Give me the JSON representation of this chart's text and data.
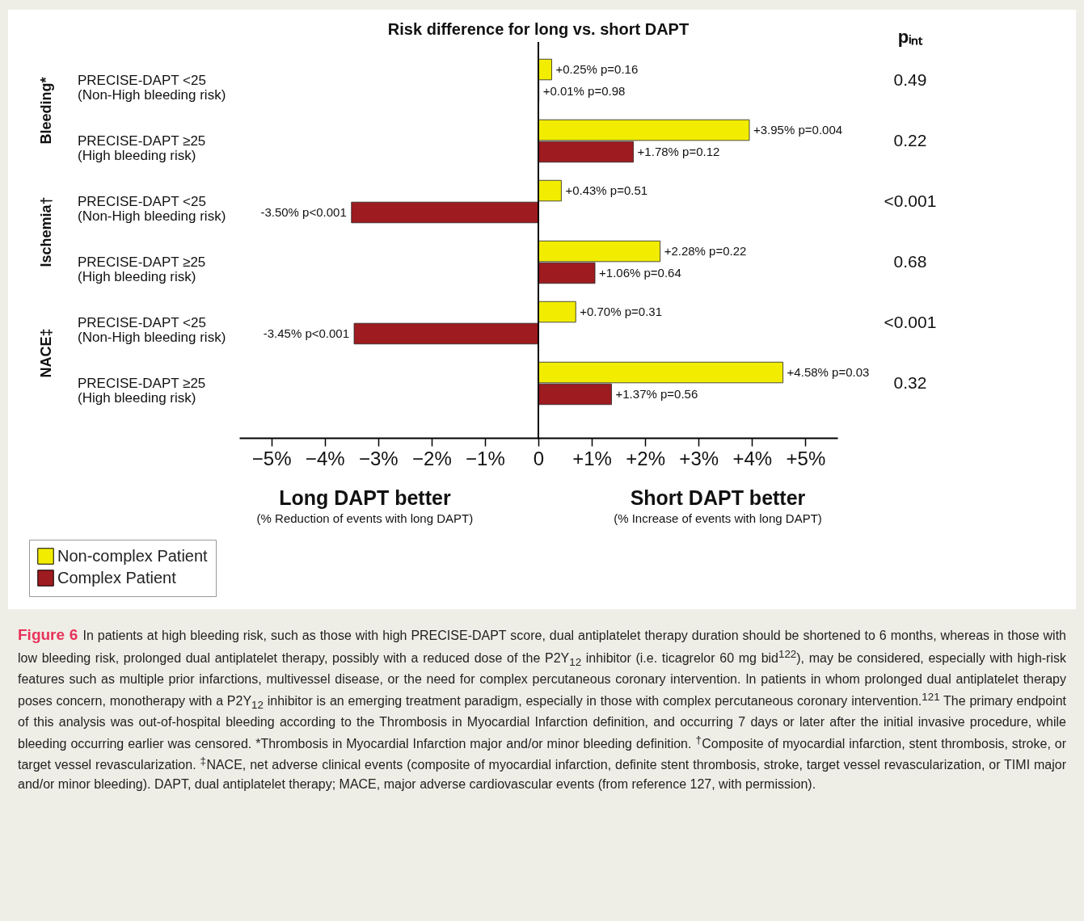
{
  "chart_data": {
    "type": "bar",
    "orientation": "horizontal",
    "title": "Risk difference for long vs. short DAPT",
    "categories": [
      "PRECISE-DAPT <25\n(Non-High bleeding risk)",
      "PRECISE-DAPT ≥25\n(High bleeding risk)",
      "PRECISE-DAPT <25\n(Non-High bleeding risk)",
      "PRECISE-DAPT ≥25\n(High bleeding risk)",
      "PRECISE-DAPT <25\n(Non-High bleeding risk)",
      "PRECISE-DAPT ≥25\n(High bleeding risk)"
    ],
    "series": [
      {
        "name": "Non-complex Patient",
        "color": "#f2ec00",
        "values": [
          0.25,
          3.95,
          0.43,
          2.28,
          0.7,
          4.58
        ],
        "value_labels": [
          "+0.25%  p=0.16",
          "+3.95%  p=0.004",
          "+0.43% p=0.51",
          "+2.28%  p=0.22",
          "+0.70% p=0.31",
          "+4.58% p=0.03"
        ]
      },
      {
        "name": "Complex Patient",
        "color": "#9e1b1f",
        "values": [
          0.01,
          1.78,
          -3.5,
          1.06,
          -3.45,
          1.37
        ],
        "value_labels": [
          "+0.01%  p=0.98",
          "+1.78%  p=0.12",
          "-3.50% p<0.001",
          "+1.06%  p=0.64",
          "-3.45% p<0.001",
          "+1.37%  p=0.56"
        ]
      }
    ],
    "xlim": [
      -5.6,
      5.6
    ],
    "xticks": [
      {
        "value": -5,
        "label": "−5%"
      },
      {
        "value": -4,
        "label": "−4%"
      },
      {
        "value": -3,
        "label": "−3%"
      },
      {
        "value": -2,
        "label": "−2%"
      },
      {
        "value": -1,
        "label": "−1%"
      },
      0,
      {
        "value": 1,
        "label": "+1%"
      },
      {
        "value": 2,
        "label": "+2%"
      },
      {
        "value": 3,
        "label": "+3%"
      },
      {
        "value": 4,
        "label": "+4%"
      },
      {
        "value": 5,
        "label": "+5%"
      }
    ],
    "ref_lines": [
      {
        "axis": "x",
        "value": 0,
        "color": "#000000"
      }
    ],
    "legend": "bottom left",
    "annotations": [
      "Bleeding*",
      "Ischemia†",
      "NACE‡",
      "pᵢₙₜ",
      "0.49",
      "0.22",
      "<0.001",
      "0.68",
      "<0.001",
      "0.32",
      "Long DAPT better",
      "(% Reduction of events with long DAPT)",
      "Short DAPT better",
      "(% Increase of events with long DAPT)",
      "Figure 6",
      "In patients at high bleeding risk, such as those with high PRECISE-DAPT score, dual antiplatelet therapy duration should be shortened to 6 months, whereas in those with low bleeding risk, prolonged dual antiplatelet therapy, possibly with a reduced dose of the P2Y$_{12}$ inhibitor (i.e. ticagrelor 60 mg bid$^{122}$), may be considered, especially with high-risk features such as multiple prior infarctions, multivessel disease, or the need for complex percutaneous coronary intervention. In patients in whom prolonged dual antiplatelet therapy poses concern, monotherapy with a P2Y$_{12}$ inhibitor is an emerging treatment paradigm, especially in those with complex percutaneous coronary intervention.$^{121}$ The primary endpoint of this analysis was out-of-hospital bleeding according to the Thrombosis in Myocardial Infarction definition, and occurring 7 days or later after the initial invasive procedure, while bleeding occurring earlier was censored. *Thrombosis in Myocardial Infarction major and/or minor bleeding definition. $^{†}$Composite of myocardial infarction, stent thrombosis, stroke, or target vessel revascularization. $^{‡}$NACE, net adverse clinical events (composite of myocardial infarction, definite stent thrombosis, stroke, target vessel revascularization, or TIMI major and/or minor bleeding). DAPT, dual antiplatelet therapy; MACE, major adverse cardiovascular events (from reference 127, with permission)."
    ]
  }
}
